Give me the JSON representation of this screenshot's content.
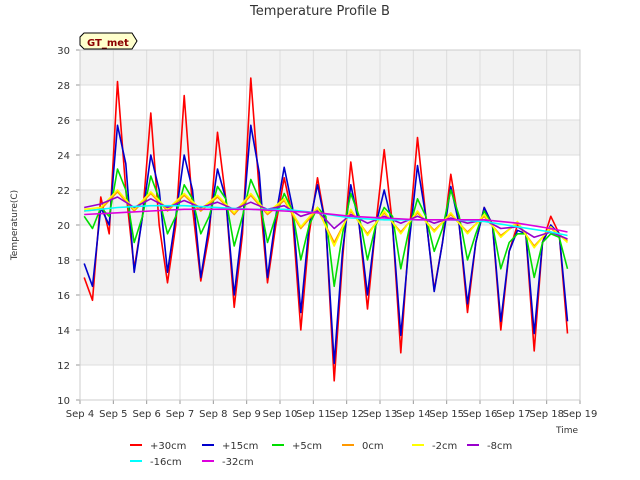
{
  "chart_data": {
    "type": "line",
    "title": "Temperature Profile B",
    "xlabel": "Time",
    "ylabel": "Temperature(C)",
    "badge": "GT_met",
    "ylim": [
      10,
      30
    ],
    "yticks": [
      10,
      12,
      14,
      16,
      18,
      20,
      22,
      24,
      26,
      28,
      30
    ],
    "xlim": [
      "Sep 4",
      "Sep 19"
    ],
    "xticks": [
      "Sep 4",
      "Sep 5",
      "Sep 6",
      "Sep 7",
      "Sep 8",
      "Sep 9",
      "Sep 10",
      "Sep 11",
      "Sep 12",
      "Sep 13",
      "Sep 14",
      "Sep 15",
      "Sep 16",
      "Sep 17",
      "Sep 18",
      "Sep 19"
    ],
    "grid": true,
    "shaded_bands": true,
    "legend_position": "bottom",
    "series": [
      {
        "name": "+30cm",
        "color": "#ff0000",
        "x": [
          "Sep 4 03:00",
          "Sep 4 09:00",
          "Sep 4 15:00",
          "Sep 4 21:00",
          "Sep 5 03:00",
          "Sep 5 09:00",
          "Sep 5 15:00",
          "Sep 5 21:00",
          "Sep 6 03:00",
          "Sep 6 09:00",
          "Sep 6 15:00",
          "Sep 6 21:00",
          "Sep 7 03:00",
          "Sep 7 09:00",
          "Sep 7 15:00",
          "Sep 7 21:00",
          "Sep 8 03:00",
          "Sep 8 09:00",
          "Sep 8 15:00",
          "Sep 8 21:00",
          "Sep 9 03:00",
          "Sep 9 09:00",
          "Sep 9 15:00",
          "Sep 9 21:00",
          "Sep 10 03:00",
          "Sep 10 09:00",
          "Sep 10 15:00",
          "Sep 10 21:00",
          "Sep 11 03:00",
          "Sep 11 09:00",
          "Sep 11 15:00",
          "Sep 11 21:00",
          "Sep 12 03:00",
          "Sep 12 09:00",
          "Sep 12 15:00",
          "Sep 12 21:00",
          "Sep 13 03:00",
          "Sep 13 09:00",
          "Sep 13 15:00",
          "Sep 13 21:00",
          "Sep 14 03:00",
          "Sep 14 09:00",
          "Sep 14 15:00",
          "Sep 14 21:00",
          "Sep 15 03:00",
          "Sep 15 09:00",
          "Sep 15 15:00",
          "Sep 15 21:00",
          "Sep 16 03:00",
          "Sep 16 09:00",
          "Sep 16 15:00",
          "Sep 16 21:00",
          "Sep 17 03:00",
          "Sep 17 09:00",
          "Sep 17 15:00",
          "Sep 17 21:00",
          "Sep 18 03:00",
          "Sep 18 09:00",
          "Sep 18 15:00"
        ],
        "y": [
          17,
          15.7,
          21.6,
          19.5,
          28.2,
          22,
          17.5,
          20.5,
          26.4,
          20,
          16.7,
          20,
          27.4,
          21,
          16.8,
          19.5,
          25.3,
          21.5,
          15.3,
          19.5,
          28.4,
          22,
          16.7,
          20,
          22.7,
          20.5,
          14,
          19.5,
          22.7,
          20,
          11.1,
          18,
          23.6,
          20,
          15.2,
          20,
          24.3,
          20,
          12.7,
          19.5,
          25,
          20.5,
          16.3,
          19,
          22.9,
          20,
          15,
          19,
          21,
          20,
          14,
          18.5,
          20,
          19.5,
          12.8,
          19,
          20.5,
          19.5,
          13.8
        ]
      },
      {
        "name": "+15cm",
        "color": "#0000cc",
        "x": [
          "Sep 4 03:00",
          "Sep 4 09:00",
          "Sep 4 15:00",
          "Sep 4 21:00",
          "Sep 5 03:00",
          "Sep 5 09:00",
          "Sep 5 15:00",
          "Sep 5 21:00",
          "Sep 6 03:00",
          "Sep 6 09:00",
          "Sep 6 15:00",
          "Sep 6 21:00",
          "Sep 7 03:00",
          "Sep 7 09:00",
          "Sep 7 15:00",
          "Sep 7 21:00",
          "Sep 8 03:00",
          "Sep 8 09:00",
          "Sep 8 15:00",
          "Sep 8 21:00",
          "Sep 9 03:00",
          "Sep 9 09:00",
          "Sep 9 15:00",
          "Sep 9 21:00",
          "Sep 10 03:00",
          "Sep 10 09:00",
          "Sep 10 15:00",
          "Sep 10 21:00",
          "Sep 11 03:00",
          "Sep 11 09:00",
          "Sep 11 15:00",
          "Sep 11 21:00",
          "Sep 12 03:00",
          "Sep 12 09:00",
          "Sep 12 15:00",
          "Sep 12 21:00",
          "Sep 13 03:00",
          "Sep 13 09:00",
          "Sep 13 15:00",
          "Sep 13 21:00",
          "Sep 14 03:00",
          "Sep 14 09:00",
          "Sep 14 15:00",
          "Sep 14 21:00",
          "Sep 15 03:00",
          "Sep 15 09:00",
          "Sep 15 15:00",
          "Sep 15 21:00",
          "Sep 16 03:00",
          "Sep 16 09:00",
          "Sep 16 15:00",
          "Sep 16 21:00",
          "Sep 17 03:00",
          "Sep 17 09:00",
          "Sep 17 15:00",
          "Sep 17 21:00",
          "Sep 18 03:00",
          "Sep 18 09:00",
          "Sep 18 15:00"
        ],
        "y": [
          17.8,
          16.5,
          21,
          20,
          25.7,
          23.5,
          17.3,
          20.5,
          24,
          22,
          17.3,
          20.5,
          24,
          22,
          17,
          20,
          23.2,
          21.5,
          16,
          20,
          25.7,
          23,
          17,
          20.5,
          23.3,
          21,
          15,
          20,
          22.3,
          20,
          12.1,
          18.5,
          22.3,
          20,
          16,
          20,
          22,
          20,
          13.7,
          19,
          23.4,
          20.5,
          16.2,
          19,
          22.2,
          20,
          15.5,
          19,
          21,
          20,
          14.5,
          18.5,
          19.7,
          19.5,
          13.8,
          19,
          20,
          19.5,
          14.5
        ]
      },
      {
        "name": "+5cm",
        "color": "#00dd00",
        "x": [
          "Sep 4 03:00",
          "Sep 4 09:00",
          "Sep 4 15:00",
          "Sep 4 21:00",
          "Sep 5 03:00",
          "Sep 5 09:00",
          "Sep 5 15:00",
          "Sep 5 21:00",
          "Sep 6 03:00",
          "Sep 6 09:00",
          "Sep 6 15:00",
          "Sep 6 21:00",
          "Sep 7 03:00",
          "Sep 7 09:00",
          "Sep 7 15:00",
          "Sep 7 21:00",
          "Sep 8 03:00",
          "Sep 8 09:00",
          "Sep 8 15:00",
          "Sep 8 21:00",
          "Sep 9 03:00",
          "Sep 9 09:00",
          "Sep 9 15:00",
          "Sep 9 21:00",
          "Sep 10 03:00",
          "Sep 10 09:00",
          "Sep 10 15:00",
          "Sep 10 21:00",
          "Sep 11 03:00",
          "Sep 11 09:00",
          "Sep 11 15:00",
          "Sep 11 21:00",
          "Sep 12 03:00",
          "Sep 12 09:00",
          "Sep 12 15:00",
          "Sep 12 21:00",
          "Sep 13 03:00",
          "Sep 13 09:00",
          "Sep 13 15:00",
          "Sep 13 21:00",
          "Sep 14 03:00",
          "Sep 14 09:00",
          "Sep 14 15:00",
          "Sep 14 21:00",
          "Sep 15 03:00",
          "Sep 15 09:00",
          "Sep 15 15:00",
          "Sep 15 21:00",
          "Sep 16 03:00",
          "Sep 16 09:00",
          "Sep 16 15:00",
          "Sep 16 21:00",
          "Sep 17 03:00",
          "Sep 17 09:00",
          "Sep 17 15:00",
          "Sep 17 21:00",
          "Sep 18 03:00",
          "Sep 18 09:00",
          "Sep 18 15:00"
        ],
        "y": [
          20.5,
          19.8,
          21,
          20.5,
          23.2,
          22,
          19,
          20.5,
          22.8,
          21.5,
          19.5,
          20.5,
          22.3,
          21.5,
          19.5,
          20.5,
          22.2,
          21.5,
          18.8,
          20.5,
          22.6,
          21.5,
          19,
          20.5,
          21.8,
          20.8,
          18,
          20,
          21,
          20.5,
          16.5,
          19.5,
          21.8,
          20.5,
          18,
          20,
          21,
          20.5,
          17.5,
          19.8,
          21.5,
          20.5,
          18.5,
          19.8,
          22,
          20.5,
          18,
          19.5,
          20.8,
          20,
          17.5,
          19,
          19.5,
          19.5,
          17,
          19,
          19.5,
          19.3,
          17.5
        ]
      },
      {
        "name": "0cm",
        "color": "#ff9900",
        "x": [
          "Sep 4 03:00",
          "Sep 4 15:00",
          "Sep 5 03:00",
          "Sep 5 15:00",
          "Sep 6 03:00",
          "Sep 6 15:00",
          "Sep 7 03:00",
          "Sep 7 15:00",
          "Sep 8 03:00",
          "Sep 8 15:00",
          "Sep 9 03:00",
          "Sep 9 15:00",
          "Sep 10 03:00",
          "Sep 10 15:00",
          "Sep 11 03:00",
          "Sep 11 15:00",
          "Sep 12 03:00",
          "Sep 12 15:00",
          "Sep 13 03:00",
          "Sep 13 15:00",
          "Sep 14 03:00",
          "Sep 14 15:00",
          "Sep 15 03:00",
          "Sep 15 15:00",
          "Sep 16 03:00",
          "Sep 16 15:00",
          "Sep 17 03:00",
          "Sep 17 15:00",
          "Sep 18 03:00",
          "Sep 18 15:00"
        ],
        "y": [
          20.8,
          20.9,
          21.9,
          20.8,
          21.8,
          20.8,
          21.7,
          20.8,
          21.6,
          20.6,
          21.7,
          20.6,
          21.4,
          19.8,
          20.9,
          19.0,
          20.8,
          19.5,
          20.7,
          19.6,
          20.7,
          19.7,
          20.6,
          19.6,
          20.5,
          19.4,
          20.1,
          18.8,
          19.8,
          19.1
        ]
      },
      {
        "name": "-2cm",
        "color": "#ffff00",
        "x": [
          "Sep 4 03:00",
          "Sep 4 15:00",
          "Sep 5 03:00",
          "Sep 5 15:00",
          "Sep 6 03:00",
          "Sep 6 15:00",
          "Sep 7 03:00",
          "Sep 7 15:00",
          "Sep 8 03:00",
          "Sep 8 15:00",
          "Sep 9 03:00",
          "Sep 9 15:00",
          "Sep 10 03:00",
          "Sep 10 15:00",
          "Sep 11 03:00",
          "Sep 11 15:00",
          "Sep 12 03:00",
          "Sep 12 15:00",
          "Sep 13 03:00",
          "Sep 13 15:00",
          "Sep 14 03:00",
          "Sep 14 15:00",
          "Sep 15 03:00",
          "Sep 15 15:00",
          "Sep 16 03:00",
          "Sep 16 15:00",
          "Sep 17 03:00",
          "Sep 17 15:00",
          "Sep 18 03:00",
          "Sep 18 15:00"
        ],
        "y": [
          20.9,
          21.0,
          22.0,
          20.9,
          21.9,
          20.9,
          21.8,
          20.9,
          21.7,
          20.7,
          21.8,
          20.7,
          21.5,
          19.9,
          21.0,
          18.8,
          20.9,
          19.4,
          20.8,
          19.5,
          20.8,
          19.6,
          20.7,
          19.5,
          20.6,
          19.3,
          20.2,
          18.7,
          19.9,
          19.0
        ]
      },
      {
        "name": "-8cm",
        "color": "#9900cc",
        "x": [
          "Sep 4 03:00",
          "Sep 4 15:00",
          "Sep 5 03:00",
          "Sep 5 15:00",
          "Sep 6 03:00",
          "Sep 6 15:00",
          "Sep 7 03:00",
          "Sep 7 15:00",
          "Sep 8 03:00",
          "Sep 8 15:00",
          "Sep 9 03:00",
          "Sep 9 15:00",
          "Sep 10 03:00",
          "Sep 10 15:00",
          "Sep 11 03:00",
          "Sep 11 15:00",
          "Sep 12 03:00",
          "Sep 12 15:00",
          "Sep 13 03:00",
          "Sep 13 15:00",
          "Sep 14 03:00",
          "Sep 14 15:00",
          "Sep 15 03:00",
          "Sep 15 15:00",
          "Sep 16 03:00",
          "Sep 16 15:00",
          "Sep 17 03:00",
          "Sep 17 15:00",
          "Sep 18 03:00",
          "Sep 18 15:00"
        ],
        "y": [
          21.0,
          21.2,
          21.6,
          21.0,
          21.5,
          21.0,
          21.4,
          21.0,
          21.3,
          20.9,
          21.3,
          20.9,
          21.1,
          20.5,
          20.8,
          19.8,
          20.6,
          20.1,
          20.5,
          20.1,
          20.5,
          20.1,
          20.4,
          20.1,
          20.3,
          19.8,
          19.9,
          19.3,
          19.6,
          19.2
        ]
      },
      {
        "name": "-16cm",
        "color": "#00ffff",
        "x": [
          "Sep 4 03:00",
          "Sep 5 03:00",
          "Sep 6 03:00",
          "Sep 7 03:00",
          "Sep 8 03:00",
          "Sep 9 03:00",
          "Sep 10 03:00",
          "Sep 11 03:00",
          "Sep 12 03:00",
          "Sep 13 03:00",
          "Sep 14 03:00",
          "Sep 15 03:00",
          "Sep 16 03:00",
          "Sep 17 03:00",
          "Sep 18 03:00",
          "Sep 18 15:00"
        ],
        "y": [
          20.8,
          21.0,
          21.1,
          21.1,
          21.0,
          20.9,
          20.9,
          20.7,
          20.4,
          20.3,
          20.3,
          20.3,
          20.2,
          19.9,
          19.6,
          19.4
        ]
      },
      {
        "name": "-32cm",
        "color": "#dd00dd",
        "x": [
          "Sep 4 03:00",
          "Sep 5 03:00",
          "Sep 6 03:00",
          "Sep 7 03:00",
          "Sep 8 03:00",
          "Sep 9 03:00",
          "Sep 10 03:00",
          "Sep 11 03:00",
          "Sep 12 03:00",
          "Sep 13 03:00",
          "Sep 14 03:00",
          "Sep 15 03:00",
          "Sep 16 03:00",
          "Sep 17 03:00",
          "Sep 18 03:00",
          "Sep 18 15:00"
        ],
        "y": [
          20.6,
          20.7,
          20.8,
          20.9,
          20.9,
          20.9,
          20.8,
          20.7,
          20.5,
          20.4,
          20.3,
          20.3,
          20.3,
          20.1,
          19.8,
          19.6
        ]
      }
    ]
  }
}
